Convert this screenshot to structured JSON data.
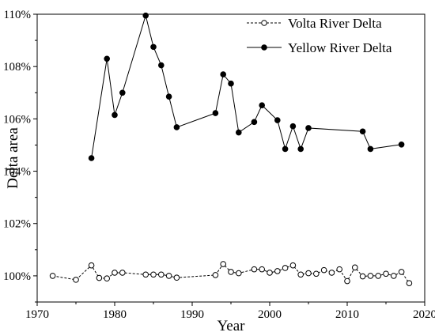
{
  "chart_data": {
    "type": "line",
    "title": "",
    "xlabel": "Year",
    "ylabel": "Delta area",
    "xlim": [
      1970,
      2020
    ],
    "ylim": [
      99.0,
      110.0
    ],
    "x_ticks": [
      1970,
      1980,
      1990,
      2000,
      2010,
      2020
    ],
    "y_ticks": [
      100,
      102,
      104,
      106,
      108,
      110
    ],
    "y_tick_labels": [
      "100%",
      "102%",
      "104%",
      "106%",
      "108%",
      "110%"
    ],
    "grid": false,
    "legend_position": "top-right",
    "series": [
      {
        "name": "Volta River Delta",
        "line_style": "dashed",
        "marker": "open-circle",
        "color": "#000000",
        "x": [
          1972,
          1975,
          1977,
          1978,
          1979,
          1980,
          1981,
          1984,
          1985,
          1986,
          1987,
          1988,
          1993,
          1994,
          1995,
          1996,
          1998,
          1999,
          2000,
          2001,
          2002,
          2003,
          2004,
          2005,
          2006,
          2007,
          2008,
          2009,
          2010,
          2011,
          2012,
          2013,
          2014,
          2015,
          2016,
          2017,
          2018
        ],
        "y": [
          100.0,
          99.85,
          100.4,
          99.92,
          99.9,
          100.12,
          100.12,
          100.05,
          100.05,
          100.05,
          100.0,
          99.93,
          100.03,
          100.45,
          100.15,
          100.1,
          100.25,
          100.25,
          100.12,
          100.18,
          100.3,
          100.4,
          100.05,
          100.1,
          100.08,
          100.22,
          100.12,
          100.25,
          99.8,
          100.32,
          99.98,
          100.0,
          100.0,
          100.08,
          100.0,
          100.15,
          99.72
        ]
      },
      {
        "name": "Yellow River Delta",
        "line_style": "solid",
        "marker": "filled-circle",
        "color": "#000000",
        "x": [
          1977,
          1979,
          1980,
          1981,
          1984,
          1985,
          1986,
          1987,
          1988,
          1993,
          1994,
          1995,
          1996,
          1998,
          1999,
          2001,
          2002,
          2003,
          2004,
          2005,
          2012,
          2013,
          2017
        ],
        "y": [
          104.5,
          108.3,
          106.15,
          107.0,
          109.95,
          108.75,
          108.05,
          106.85,
          105.68,
          106.22,
          107.7,
          107.35,
          105.48,
          105.88,
          106.52,
          105.95,
          104.85,
          105.72,
          104.85,
          105.65,
          105.52,
          104.85,
          105.02
        ]
      }
    ]
  }
}
